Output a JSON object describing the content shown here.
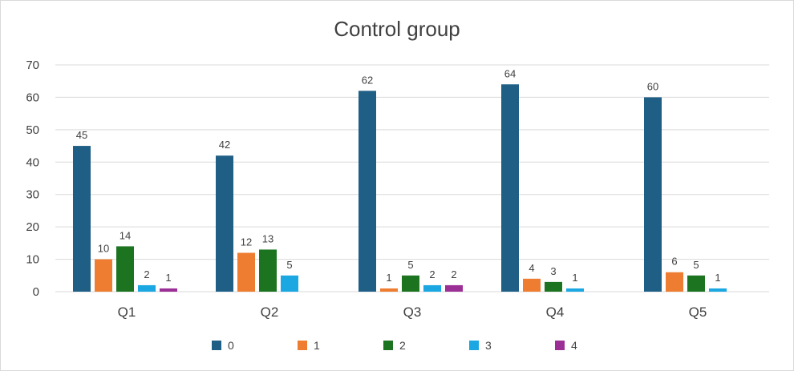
{
  "chart_data": {
    "type": "bar",
    "title": "Control group",
    "categories": [
      "Q1",
      "Q2",
      "Q3",
      "Q4",
      "Q5"
    ],
    "series": [
      {
        "name": "0",
        "color": "#1f5f86",
        "values": [
          45,
          42,
          62,
          64,
          60
        ]
      },
      {
        "name": "1",
        "color": "#ee7d31",
        "values": [
          10,
          12,
          1,
          4,
          6
        ]
      },
      {
        "name": "2",
        "color": "#1c7421",
        "values": [
          14,
          13,
          5,
          3,
          5
        ]
      },
      {
        "name": "3",
        "color": "#1aa7e2",
        "values": [
          2,
          5,
          2,
          1,
          1
        ]
      },
      {
        "name": "4",
        "color": "#9c2f96",
        "values": [
          1,
          null,
          2,
          null,
          null
        ]
      }
    ],
    "ylim": [
      0,
      70
    ],
    "yticks": [
      0,
      10,
      20,
      30,
      40,
      50,
      60,
      70
    ],
    "grid": true,
    "legend": "bottom"
  }
}
